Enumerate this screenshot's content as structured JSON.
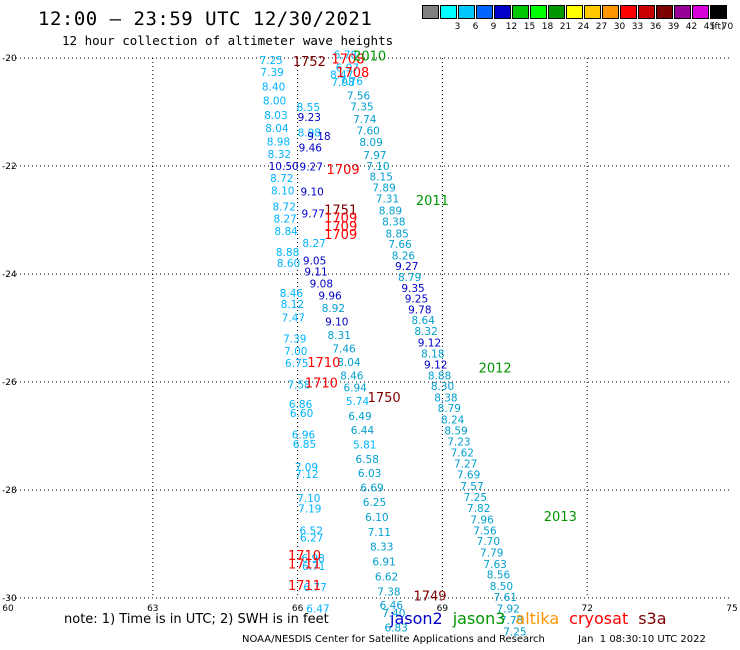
{
  "header": {
    "title": "12:00 — 23:59 UTC 12/30/2021",
    "subtitle": "12 hour collection of altimeter wave heights"
  },
  "legend": {
    "unit": "(ft)",
    "items": [
      {
        "label": "",
        "color": "#808080"
      },
      {
        "label": "3",
        "color": "#00ffff"
      },
      {
        "label": "6",
        "color": "#00c8ff"
      },
      {
        "label": "9",
        "color": "#0064ff"
      },
      {
        "label": "12",
        "color": "#0000c8"
      },
      {
        "label": "15",
        "color": "#00c800"
      },
      {
        "label": "18",
        "color": "#00ff00"
      },
      {
        "label": "21",
        "color": "#009600"
      },
      {
        "label": "24",
        "color": "#ffff00"
      },
      {
        "label": "27",
        "color": "#ffc800"
      },
      {
        "label": "30",
        "color": "#ff9600"
      },
      {
        "label": "33",
        "color": "#ff0000"
      },
      {
        "label": "36",
        "color": "#c80000"
      },
      {
        "label": "39",
        "color": "#7d0000"
      },
      {
        "label": "42",
        "color": "#960096"
      },
      {
        "label": "45",
        "color": "#d800d8"
      },
      {
        "label": "70",
        "color": "#000000"
      }
    ]
  },
  "map": {
    "lon_range": [
      60,
      75
    ],
    "lat_range": [
      -30,
      -20
    ],
    "lon_ticks": [
      "60",
      "63",
      "66",
      "69",
      "72",
      "75"
    ],
    "lat_ticks": [
      "-20",
      "-22",
      "-24",
      "-26",
      "-28",
      "-30"
    ],
    "grid_lon": [
      63,
      66,
      69,
      72
    ],
    "grid_lat": [
      -22,
      -24,
      -26,
      -28
    ]
  },
  "colors": {
    "jason2": "#0000c8",
    "jason3": "#009600",
    "altika": "#ff9600",
    "cryosat": "#ff0000",
    "s3a": "#7d0000",
    "wave_light": "#00b4ff",
    "wave_mid": "#009fcf",
    "wave_dark": "#0000c8"
  },
  "wave_labels": [
    {
      "text": "7.25",
      "lon": 65.21,
      "lat": -20.11,
      "c": "wave_light"
    },
    {
      "text": "7.39",
      "lon": 65.23,
      "lat": -20.33,
      "c": "wave_light"
    },
    {
      "text": "8.40",
      "lon": 65.26,
      "lat": -20.6,
      "c": "wave_light"
    },
    {
      "text": "8.00",
      "lon": 65.28,
      "lat": -20.86,
      "c": "wave_light"
    },
    {
      "text": "8.03",
      "lon": 65.31,
      "lat": -21.13,
      "c": "wave_light"
    },
    {
      "text": "8.04",
      "lon": 65.33,
      "lat": -21.37,
      "c": "wave_light"
    },
    {
      "text": "8.98",
      "lon": 65.36,
      "lat": -21.62,
      "c": "wave_light"
    },
    {
      "text": "8.32",
      "lon": 65.38,
      "lat": -21.85,
      "c": "wave_light"
    },
    {
      "text": "10.50",
      "lon": 65.4,
      "lat": -22.07,
      "c": "wave_dark"
    },
    {
      "text": "8.72",
      "lon": 65.43,
      "lat": -22.3,
      "c": "wave_light"
    },
    {
      "text": "8.10",
      "lon": 65.45,
      "lat": -22.53,
      "c": "wave_light"
    },
    {
      "text": "8.72",
      "lon": 65.48,
      "lat": -22.82,
      "c": "wave_light"
    },
    {
      "text": "8.27",
      "lon": 65.5,
      "lat": -23.05,
      "c": "wave_light"
    },
    {
      "text": "8.84",
      "lon": 65.52,
      "lat": -23.28,
      "c": "wave_light"
    },
    {
      "text": "8.88",
      "lon": 65.55,
      "lat": -23.67,
      "c": "wave_light"
    },
    {
      "text": "8.60",
      "lon": 65.57,
      "lat": -23.87,
      "c": "wave_light"
    },
    {
      "text": "8.46",
      "lon": 65.63,
      "lat": -24.43,
      "c": "wave_light"
    },
    {
      "text": "8.12",
      "lon": 65.65,
      "lat": -24.63,
      "c": "wave_light"
    },
    {
      "text": "7.47",
      "lon": 65.67,
      "lat": -24.88,
      "c": "wave_light"
    },
    {
      "text": "7.39",
      "lon": 65.7,
      "lat": -25.27,
      "c": "wave_light"
    },
    {
      "text": "7.00",
      "lon": 65.72,
      "lat": -25.5,
      "c": "wave_light"
    },
    {
      "text": "6.75",
      "lon": 65.74,
      "lat": -25.72,
      "c": "wave_light"
    },
    {
      "text": "7.58",
      "lon": 65.79,
      "lat": -26.12,
      "c": "wave_light"
    },
    {
      "text": "6.86",
      "lon": 65.82,
      "lat": -26.48,
      "c": "wave_light"
    },
    {
      "text": "6.60",
      "lon": 65.84,
      "lat": -26.65,
      "c": "wave_light"
    },
    {
      "text": "6.96",
      "lon": 65.88,
      "lat": -27.05,
      "c": "wave_light"
    },
    {
      "text": "6.85",
      "lon": 65.9,
      "lat": -27.22,
      "c": "wave_light"
    },
    {
      "text": "7.09",
      "lon": 65.94,
      "lat": -27.65,
      "c": "wave_light"
    },
    {
      "text": "7.12",
      "lon": 65.95,
      "lat": -27.78,
      "c": "wave_light"
    },
    {
      "text": "7.10",
      "lon": 65.99,
      "lat": -28.22,
      "c": "wave_light"
    },
    {
      "text": "7.19",
      "lon": 66.01,
      "lat": -28.42,
      "c": "wave_light"
    },
    {
      "text": "6.52",
      "lon": 66.04,
      "lat": -28.82,
      "c": "wave_light"
    },
    {
      "text": "6.27",
      "lon": 66.05,
      "lat": -28.95,
      "c": "wave_light"
    },
    {
      "text": "6.98",
      "lon": 66.08,
      "lat": -29.33,
      "c": "wave_light"
    },
    {
      "text": "6.71",
      "lon": 66.09,
      "lat": -29.48,
      "c": "wave_light"
    },
    {
      "text": "6.77",
      "lon": 66.12,
      "lat": -29.87,
      "c": "wave_light"
    },
    {
      "text": "6.47",
      "lon": 66.18,
      "lat": -30.27,
      "c": "wave_light"
    },
    {
      "text": "6.78",
      "lon": 66.75,
      "lat": -20.01,
      "c": "wave_light"
    },
    {
      "text": "6.97",
      "lon": 66.79,
      "lat": -20.25,
      "c": "wave_light"
    },
    {
      "text": "8.47",
      "lon": 66.67,
      "lat": -20.38,
      "c": "wave_light"
    },
    {
      "text": "7.98",
      "lon": 66.7,
      "lat": -20.52,
      "c": "wave_light"
    },
    {
      "text": "7.76",
      "lon": 66.87,
      "lat": -20.5,
      "c": "wave_light"
    },
    {
      "text": "7.56",
      "lon": 67.02,
      "lat": -20.77,
      "c": "wave_mid"
    },
    {
      "text": "7.35",
      "lon": 67.09,
      "lat": -20.97,
      "c": "wave_mid"
    },
    {
      "text": "7.74",
      "lon": 67.15,
      "lat": -21.2,
      "c": "wave_mid"
    },
    {
      "text": "7.60",
      "lon": 67.22,
      "lat": -21.42,
      "c": "wave_mid"
    },
    {
      "text": "8.09",
      "lon": 67.28,
      "lat": -21.63,
      "c": "wave_mid"
    },
    {
      "text": "7.97",
      "lon": 67.36,
      "lat": -21.87,
      "c": "wave_mid"
    },
    {
      "text": "7.10",
      "lon": 67.42,
      "lat": -22.07,
      "c": "wave_mid"
    },
    {
      "text": "8.15",
      "lon": 67.49,
      "lat": -22.27,
      "c": "wave_mid"
    },
    {
      "text": "7.89",
      "lon": 67.55,
      "lat": -22.47,
      "c": "wave_mid"
    },
    {
      "text": "7.31",
      "lon": 67.62,
      "lat": -22.68,
      "c": "wave_mid"
    },
    {
      "text": "8.89",
      "lon": 67.68,
      "lat": -22.9,
      "c": "wave_mid"
    },
    {
      "text": "8.38",
      "lon": 67.75,
      "lat": -23.1,
      "c": "wave_mid"
    },
    {
      "text": "8.85",
      "lon": 67.82,
      "lat": -23.32,
      "c": "wave_mid"
    },
    {
      "text": "7.66",
      "lon": 67.88,
      "lat": -23.52,
      "c": "wave_mid"
    },
    {
      "text": "8.26",
      "lon": 67.95,
      "lat": -23.73,
      "c": "wave_mid"
    },
    {
      "text": "9.27",
      "lon": 68.02,
      "lat": -23.93,
      "c": "wave_dark"
    },
    {
      "text": "8.79",
      "lon": 68.08,
      "lat": -24.13,
      "c": "wave_mid"
    },
    {
      "text": "9.35",
      "lon": 68.15,
      "lat": -24.33,
      "c": "wave_dark"
    },
    {
      "text": "9.25",
      "lon": 68.22,
      "lat": -24.53,
      "c": "wave_dark"
    },
    {
      "text": "9.78",
      "lon": 68.29,
      "lat": -24.73,
      "c": "wave_dark"
    },
    {
      "text": "8.64",
      "lon": 68.36,
      "lat": -24.93,
      "c": "wave_mid"
    },
    {
      "text": "8.32",
      "lon": 68.42,
      "lat": -25.13,
      "c": "wave_mid"
    },
    {
      "text": "9.12",
      "lon": 68.49,
      "lat": -25.34,
      "c": "wave_dark"
    },
    {
      "text": "8.18",
      "lon": 68.56,
      "lat": -25.55,
      "c": "wave_mid"
    },
    {
      "text": "9.12",
      "lon": 68.62,
      "lat": -25.75,
      "c": "wave_dark"
    },
    {
      "text": "8.88",
      "lon": 68.7,
      "lat": -25.95,
      "c": "wave_mid"
    },
    {
      "text": "8.30",
      "lon": 68.76,
      "lat": -26.15,
      "c": "wave_mid"
    },
    {
      "text": "8.38",
      "lon": 68.83,
      "lat": -26.36,
      "c": "wave_mid"
    },
    {
      "text": "8.79",
      "lon": 68.9,
      "lat": -26.56,
      "c": "wave_mid"
    },
    {
      "text": "8.24",
      "lon": 68.97,
      "lat": -26.77,
      "c": "wave_mid"
    },
    {
      "text": "8.59",
      "lon": 69.04,
      "lat": -26.97,
      "c": "wave_mid"
    },
    {
      "text": "7.23",
      "lon": 69.1,
      "lat": -27.18,
      "c": "wave_mid"
    },
    {
      "text": "7.62",
      "lon": 69.17,
      "lat": -27.38,
      "c": "wave_mid"
    },
    {
      "text": "7.27",
      "lon": 69.24,
      "lat": -27.58,
      "c": "wave_mid"
    },
    {
      "text": "7.69",
      "lon": 69.3,
      "lat": -27.79,
      "c": "wave_mid"
    },
    {
      "text": "7.57",
      "lon": 69.37,
      "lat": -28.0,
      "c": "wave_mid"
    },
    {
      "text": "7.25",
      "lon": 69.44,
      "lat": -28.2,
      "c": "wave_mid"
    },
    {
      "text": "7.82",
      "lon": 69.51,
      "lat": -28.41,
      "c": "wave_mid"
    },
    {
      "text": "7.96",
      "lon": 69.58,
      "lat": -28.62,
      "c": "wave_mid"
    },
    {
      "text": "7.56",
      "lon": 69.64,
      "lat": -28.82,
      "c": "wave_mid"
    },
    {
      "text": "7.70",
      "lon": 69.71,
      "lat": -29.02,
      "c": "wave_mid"
    },
    {
      "text": "7.79",
      "lon": 69.78,
      "lat": -29.23,
      "c": "wave_mid"
    },
    {
      "text": "7.63",
      "lon": 69.85,
      "lat": -29.44,
      "c": "wave_mid"
    },
    {
      "text": "8.56",
      "lon": 69.92,
      "lat": -29.64,
      "c": "wave_mid"
    },
    {
      "text": "8.50",
      "lon": 69.98,
      "lat": -29.85,
      "c": "wave_mid"
    },
    {
      "text": "7.61",
      "lon": 70.06,
      "lat": -30.06,
      "c": "wave_mid"
    },
    {
      "text": "7.92",
      "lon": 70.12,
      "lat": -30.27,
      "c": "wave_mid"
    },
    {
      "text": "7.78",
      "lon": 70.19,
      "lat": -30.48,
      "c": "wave_mid"
    },
    {
      "text": "7.25",
      "lon": 70.26,
      "lat": -30.69,
      "c": "wave_mid"
    },
    {
      "text": "8.55",
      "lon": 65.98,
      "lat": -20.98,
      "c": "wave_light"
    },
    {
      "text": "9.23",
      "lon": 66.0,
      "lat": -21.17,
      "c": "wave_dark"
    },
    {
      "text": "8.98",
      "lon": 66.0,
      "lat": -21.45,
      "c": "wave_light"
    },
    {
      "text": "9.18",
      "lon": 66.2,
      "lat": -21.52,
      "c": "wave_dark"
    },
    {
      "text": "9.46",
      "lon": 66.02,
      "lat": -21.73,
      "c": "wave_dark"
    },
    {
      "text": "9.27",
      "lon": 66.04,
      "lat": -22.08,
      "c": "wave_dark"
    },
    {
      "text": "9.10",
      "lon": 66.06,
      "lat": -22.55,
      "c": "wave_dark"
    },
    {
      "text": "9.77",
      "lon": 66.08,
      "lat": -22.95,
      "c": "wave_dark"
    },
    {
      "text": "8.27",
      "lon": 66.1,
      "lat": -23.5,
      "c": "wave_light"
    },
    {
      "text": "9.05",
      "lon": 66.11,
      "lat": -23.82,
      "c": "wave_dark"
    },
    {
      "text": "9.11",
      "lon": 66.14,
      "lat": -24.03,
      "c": "wave_dark"
    },
    {
      "text": "9.08",
      "lon": 66.25,
      "lat": -24.25,
      "c": "wave_dark"
    },
    {
      "text": "9.96",
      "lon": 66.43,
      "lat": -24.47,
      "c": "wave_dark"
    },
    {
      "text": "8.92",
      "lon": 66.5,
      "lat": -24.7,
      "c": "wave_mid"
    },
    {
      "text": "9.10",
      "lon": 66.57,
      "lat": -24.95,
      "c": "wave_dark"
    },
    {
      "text": "8.31",
      "lon": 66.62,
      "lat": -25.2,
      "c": "wave_mid"
    },
    {
      "text": "7.46",
      "lon": 66.72,
      "lat": -25.45,
      "c": "wave_mid"
    },
    {
      "text": "8.04",
      "lon": 66.82,
      "lat": -25.7,
      "c": "wave_mid"
    },
    {
      "text": "8.46",
      "lon": 66.88,
      "lat": -25.95,
      "c": "wave_mid"
    },
    {
      "text": "6.94",
      "lon": 66.95,
      "lat": -26.18,
      "c": "wave_mid"
    },
    {
      "text": "5.74",
      "lon": 67.0,
      "lat": -26.43,
      "c": "wave_light"
    },
    {
      "text": "6.49",
      "lon": 67.05,
      "lat": -26.7,
      "c": "wave_mid"
    },
    {
      "text": "6.44",
      "lon": 67.1,
      "lat": -26.96,
      "c": "wave_mid"
    },
    {
      "text": "5.81",
      "lon": 67.15,
      "lat": -27.23,
      "c": "wave_light"
    },
    {
      "text": "6.58",
      "lon": 67.2,
      "lat": -27.5,
      "c": "wave_mid"
    },
    {
      "text": "6.03",
      "lon": 67.25,
      "lat": -27.76,
      "c": "wave_mid"
    },
    {
      "text": "6.69",
      "lon": 67.3,
      "lat": -28.03,
      "c": "wave_mid"
    },
    {
      "text": "6.25",
      "lon": 67.35,
      "lat": -28.3,
      "c": "wave_mid"
    },
    {
      "text": "6.10",
      "lon": 67.4,
      "lat": -28.57,
      "c": "wave_mid"
    },
    {
      "text": "7.11",
      "lon": 67.45,
      "lat": -28.85,
      "c": "wave_mid"
    },
    {
      "text": "8.33",
      "lon": 67.5,
      "lat": -29.12,
      "c": "wave_mid"
    },
    {
      "text": "6.91",
      "lon": 67.55,
      "lat": -29.4,
      "c": "wave_mid"
    },
    {
      "text": "6.62",
      "lon": 67.6,
      "lat": -29.68,
      "c": "wave_mid"
    },
    {
      "text": "7.38",
      "lon": 67.65,
      "lat": -29.95,
      "c": "wave_mid"
    },
    {
      "text": "6.46",
      "lon": 67.7,
      "lat": -30.2,
      "c": "wave_mid"
    },
    {
      "text": "7.40",
      "lon": 67.75,
      "lat": -30.35,
      "c": "wave_mid"
    },
    {
      "text": "6.83",
      "lon": 67.8,
      "lat": -30.62,
      "c": "wave_mid"
    }
  ],
  "time_labels": [
    {
      "text": "1752",
      "lon": 65.9,
      "lat": -20.15,
      "c": "s3a"
    },
    {
      "text": "1708",
      "lon": 66.7,
      "lat": -20.1,
      "c": "cryosat"
    },
    {
      "text": "2010",
      "lon": 67.15,
      "lat": -20.05,
      "c": "jason3"
    },
    {
      "text": "1708",
      "lon": 66.8,
      "lat": -20.35,
      "c": "cryosat"
    },
    {
      "text": "1709",
      "lon": 66.6,
      "lat": -22.15,
      "c": "cryosat"
    },
    {
      "text": "2011",
      "lon": 68.45,
      "lat": -22.72,
      "c": "jason3"
    },
    {
      "text": "1751",
      "lon": 66.55,
      "lat": -22.9,
      "c": "s3a"
    },
    {
      "text": "1709",
      "lon": 66.55,
      "lat": -23.05,
      "c": "cryosat"
    },
    {
      "text": "1709",
      "lon": 66.55,
      "lat": -23.2,
      "c": "cryosat"
    },
    {
      "text": "1709",
      "lon": 66.55,
      "lat": -23.35,
      "c": "cryosat"
    },
    {
      "text": "2012",
      "lon": 69.75,
      "lat": -25.82,
      "c": "jason3"
    },
    {
      "text": "1710",
      "lon": 66.2,
      "lat": -25.72,
      "c": "cryosat"
    },
    {
      "text": "1710",
      "lon": 66.15,
      "lat": -26.1,
      "c": "cryosat"
    },
    {
      "text": "1750",
      "lon": 67.45,
      "lat": -26.37,
      "c": "s3a"
    },
    {
      "text": "2013",
      "lon": 71.1,
      "lat": -28.57,
      "c": "jason3"
    },
    {
      "text": "1710",
      "lon": 65.8,
      "lat": -29.3,
      "c": "cryosat"
    },
    {
      "text": "1711",
      "lon": 65.8,
      "lat": -29.45,
      "c": "cryosat"
    },
    {
      "text": "1711",
      "lon": 65.8,
      "lat": -29.85,
      "c": "cryosat"
    },
    {
      "text": "1749",
      "lon": 68.4,
      "lat": -30.05,
      "c": "s3a"
    }
  ],
  "footer": {
    "note": "note: 1) Time is in UTC; 2) SWH is in feet",
    "satellites": [
      {
        "name": "jason2",
        "color": "#0000c8"
      },
      {
        "name": "jason3",
        "color": "#009600"
      },
      {
        "name": "altika",
        "color": "#ff9600"
      },
      {
        "name": "cryosat",
        "color": "#ff0000"
      },
      {
        "name": "s3a",
        "color": "#7d0000"
      }
    ],
    "credit": "NOAA/NESDIS Center for Satellite Applications and Research",
    "generated": "Jan  1 08:30:10 UTC 2022"
  }
}
